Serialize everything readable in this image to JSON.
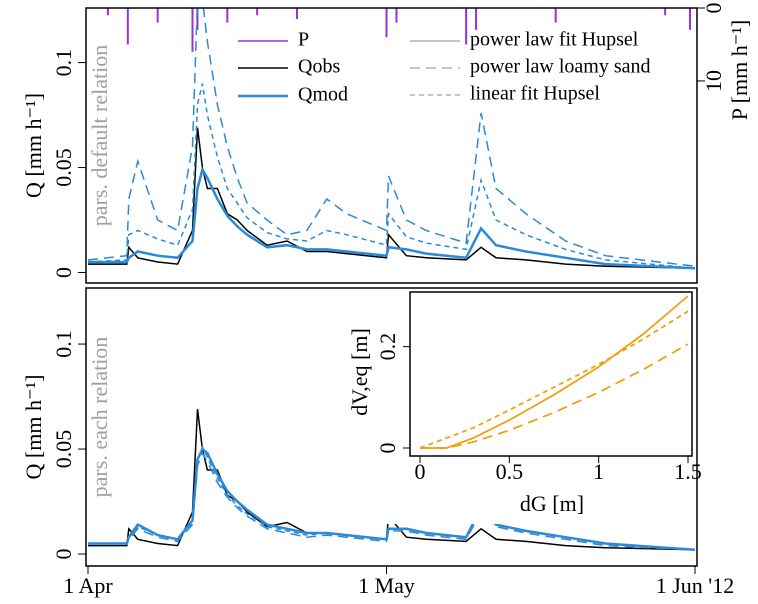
{
  "chart_data": [
    {
      "type": "line",
      "ylabel": "Q [mm h⁻¹]",
      "y2label": "P [mm h⁻¹]",
      "note": "pars. default relation",
      "xlim": [
        0,
        61
      ],
      "ylim": [
        -0.005,
        0.126
      ],
      "yticks": [
        0,
        0.05,
        0.1
      ],
      "y2lim": [
        0,
        37.7
      ],
      "y2ticks": [
        0,
        10
      ],
      "y2_inverted": true,
      "x": [
        0,
        3.9,
        4.1,
        5,
        7,
        9,
        10.5,
        11,
        11.5,
        12,
        13,
        14,
        15,
        16,
        18,
        20,
        22,
        24,
        26,
        30,
        30.2,
        32,
        34,
        38,
        39.5,
        41,
        44,
        48,
        52,
        61
      ],
      "series": [
        {
          "name": "P",
          "color": "#9b30d9",
          "axis": "y2",
          "style": "bar",
          "x": [
            2,
            4,
            7,
            10.5,
            11,
            14,
            17,
            21,
            30,
            31,
            38,
            39,
            47,
            58,
            60.5
          ],
          "values": [
            1,
            5,
            2,
            6,
            3,
            2,
            1,
            1.5,
            4,
            2,
            5,
            3,
            2,
            1,
            3
          ]
        },
        {
          "name": "Qobs",
          "color": "#000000",
          "dash": "solid",
          "width": 1.5,
          "values": [
            0.004,
            0.004,
            0.012,
            0.007,
            0.005,
            0.004,
            0.02,
            0.069,
            0.05,
            0.04,
            0.04,
            0.028,
            0.025,
            0.02,
            0.013,
            0.015,
            0.01,
            0.01,
            0.009,
            0.007,
            0.018,
            0.008,
            0.007,
            0.006,
            0.012,
            0.007,
            0.006,
            0.004,
            0.003,
            0.002
          ]
        },
        {
          "name": "Qmod",
          "color": "#2b8ad8",
          "dash": "solid",
          "width": 2.5,
          "values": [
            0.005,
            0.005,
            0.007,
            0.01,
            0.008,
            0.007,
            0.015,
            0.04,
            0.049,
            0.045,
            0.035,
            0.027,
            0.022,
            0.018,
            0.012,
            0.013,
            0.011,
            0.011,
            0.01,
            0.008,
            0.012,
            0.011,
            0.009,
            0.007,
            0.021,
            0.013,
            0.01,
            0.007,
            0.004,
            0.002
          ]
        },
        {
          "color": "#2b8ad8",
          "dash": "long",
          "width": 1.5,
          "values": [
            0.006,
            0.008,
            0.035,
            0.053,
            0.025,
            0.02,
            0.06,
            0.13,
            0.13,
            0.11,
            0.08,
            0.06,
            0.045,
            0.033,
            0.025,
            0.018,
            0.02,
            0.035,
            0.028,
            0.02,
            0.046,
            0.025,
            0.02,
            0.014,
            0.076,
            0.04,
            0.028,
            0.015,
            0.008,
            0.003
          ]
        },
        {
          "color": "#2b8ad8",
          "dash": "short",
          "width": 1.5,
          "values": [
            0.005,
            0.006,
            0.018,
            0.02,
            0.016,
            0.013,
            0.03,
            0.08,
            0.09,
            0.075,
            0.055,
            0.04,
            0.033,
            0.026,
            0.019,
            0.016,
            0.015,
            0.02,
            0.018,
            0.013,
            0.028,
            0.017,
            0.014,
            0.011,
            0.044,
            0.025,
            0.018,
            0.011,
            0.006,
            0.002
          ]
        }
      ],
      "line_styles": [
        {
          "name": "power law fit Hupsel",
          "dash": "solid",
          "color": "#b0b0b0"
        },
        {
          "name": "power law loamy sand",
          "dash": "long",
          "color": "#b0b0b0"
        },
        {
          "name": "linear fit Hupsel",
          "dash": "short",
          "color": "#b0b0b0"
        }
      ]
    },
    {
      "type": "line",
      "ylabel": "Q [mm h⁻¹]",
      "note": "pars. each relation",
      "xlim": [
        0,
        61
      ],
      "ylim": [
        -0.0057,
        0.1267
      ],
      "yticks": [
        0,
        0.05,
        0.1
      ],
      "xticks": [
        {
          "value": 0,
          "label": "1 Apr"
        },
        {
          "value": 30,
          "label": "1 May"
        },
        {
          "value": 61,
          "label": "1 Jun '12"
        }
      ],
      "x": [
        0,
        3.9,
        4.1,
        5,
        7,
        9,
        10.5,
        11,
        11.5,
        12,
        13,
        14,
        15,
        16,
        18,
        20,
        22,
        24,
        26,
        30,
        30.2,
        32,
        34,
        38,
        39.5,
        41,
        44,
        48,
        52,
        61
      ],
      "series": [
        {
          "color": "#000000",
          "dash": "solid",
          "width": 1.5,
          "values": [
            0.004,
            0.004,
            0.012,
            0.007,
            0.005,
            0.004,
            0.02,
            0.069,
            0.05,
            0.04,
            0.04,
            0.028,
            0.025,
            0.02,
            0.013,
            0.015,
            0.01,
            0.01,
            0.009,
            0.007,
            0.018,
            0.008,
            0.007,
            0.006,
            0.012,
            0.007,
            0.006,
            0.004,
            0.003,
            0.002
          ]
        },
        {
          "color": "#2b8ad8",
          "dash": "solid",
          "width": 2.5,
          "values": [
            0.005,
            0.005,
            0.008,
            0.014,
            0.009,
            0.007,
            0.016,
            0.045,
            0.05,
            0.048,
            0.038,
            0.03,
            0.025,
            0.021,
            0.014,
            0.012,
            0.01,
            0.01,
            0.009,
            0.007,
            0.012,
            0.012,
            0.01,
            0.008,
            0.022,
            0.014,
            0.011,
            0.008,
            0.005,
            0.002
          ]
        },
        {
          "color": "#2b8ad8",
          "dash": "long",
          "width": 1.5,
          "values": [
            0.005,
            0.005,
            0.007,
            0.012,
            0.008,
            0.006,
            0.014,
            0.042,
            0.048,
            0.044,
            0.034,
            0.027,
            0.022,
            0.018,
            0.012,
            0.01,
            0.008,
            0.009,
            0.008,
            0.006,
            0.011,
            0.011,
            0.009,
            0.007,
            0.02,
            0.013,
            0.01,
            0.007,
            0.004,
            0.002
          ]
        },
        {
          "color": "#2b8ad8",
          "dash": "short",
          "width": 1.5,
          "values": [
            0.005,
            0.005,
            0.008,
            0.013,
            0.009,
            0.007,
            0.015,
            0.044,
            0.051,
            0.046,
            0.036,
            0.028,
            0.023,
            0.019,
            0.013,
            0.011,
            0.009,
            0.01,
            0.009,
            0.007,
            0.012,
            0.012,
            0.01,
            0.008,
            0.021,
            0.014,
            0.011,
            0.008,
            0.005,
            0.002
          ]
        }
      ]
    },
    {
      "type": "line",
      "xlabel": "dG [m]",
      "ylabel": "dV,eq [m]",
      "xlim": [
        0,
        1.5
      ],
      "ylim": [
        0,
        0.3
      ],
      "xticks": [
        0,
        0.5,
        1,
        1.5
      ],
      "yticks": [
        0,
        0.2
      ],
      "x": [
        0,
        0.15,
        0.3,
        0.5,
        0.75,
        1,
        1.25,
        1.5
      ],
      "series": [
        {
          "color": "#f0a010",
          "dash": "solid",
          "width": 1.8,
          "values": [
            0,
            0,
            0.02,
            0.055,
            0.105,
            0.16,
            0.225,
            0.3
          ]
        },
        {
          "color": "#f0a010",
          "dash": "long",
          "width": 1.8,
          "values": [
            0,
            0,
            0.012,
            0.035,
            0.07,
            0.11,
            0.155,
            0.205
          ]
        },
        {
          "color": "#f0a010",
          "dash": "short",
          "width": 1.8,
          "values": [
            0,
            0.02,
            0.04,
            0.075,
            0.12,
            0.165,
            0.215,
            0.27
          ]
        }
      ]
    }
  ]
}
